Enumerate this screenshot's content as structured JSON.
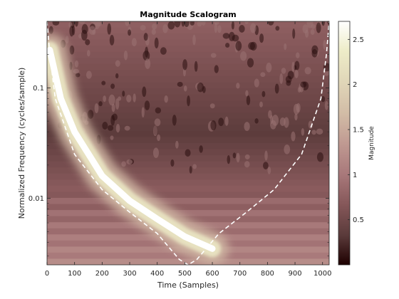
{
  "chart_data": {
    "type": "heatmap",
    "title": "Magnitude Scalogram",
    "xlabel": "Time (Samples)",
    "ylabel": "Normalized Frequency  (cycles/sample)",
    "x_range": [
      0,
      1024
    ],
    "x_ticks": [
      0,
      100,
      200,
      300,
      400,
      500,
      600,
      700,
      800,
      900,
      1000
    ],
    "y_scale": "log",
    "y_range": [
      0.0025,
      0.4
    ],
    "y_ticks": [
      0.01,
      0.1
    ],
    "y_tick_labels": [
      "0.01",
      "0.1"
    ],
    "colorbar": {
      "label": "Magnitude",
      "range": [
        0,
        2.7
      ],
      "ticks": [
        0.5,
        1,
        1.5,
        2,
        2.5
      ],
      "colormap": "pink"
    },
    "ridge": {
      "description": "Chirp ridge of maximum magnitude",
      "points": [
        {
          "x": 10,
          "y": 0.22
        },
        {
          "x": 50,
          "y": 0.08
        },
        {
          "x": 100,
          "y": 0.04
        },
        {
          "x": 200,
          "y": 0.016
        },
        {
          "x": 300,
          "y": 0.0095
        },
        {
          "x": 400,
          "y": 0.0065
        },
        {
          "x": 500,
          "y": 0.0045
        },
        {
          "x": 600,
          "y": 0.0035
        }
      ],
      "peak_magnitude": 2.7
    },
    "cone_of_influence": {
      "style": "dashed white",
      "points": [
        {
          "x": 0,
          "y": 0.4
        },
        {
          "x": 10,
          "y": 0.2
        },
        {
          "x": 30,
          "y": 0.08
        },
        {
          "x": 100,
          "y": 0.025
        },
        {
          "x": 200,
          "y": 0.012
        },
        {
          "x": 300,
          "y": 0.0075
        },
        {
          "x": 400,
          "y": 0.0048
        },
        {
          "x": 480,
          "y": 0.0028
        },
        {
          "x": 512,
          "y": 0.0025
        },
        {
          "x": 544,
          "y": 0.0028
        },
        {
          "x": 624,
          "y": 0.0048
        },
        {
          "x": 724,
          "y": 0.0075
        },
        {
          "x": 824,
          "y": 0.012
        },
        {
          "x": 924,
          "y": 0.025
        },
        {
          "x": 994,
          "y": 0.08
        },
        {
          "x": 1014,
          "y": 0.2
        },
        {
          "x": 1024,
          "y": 0.4
        }
      ]
    }
  }
}
